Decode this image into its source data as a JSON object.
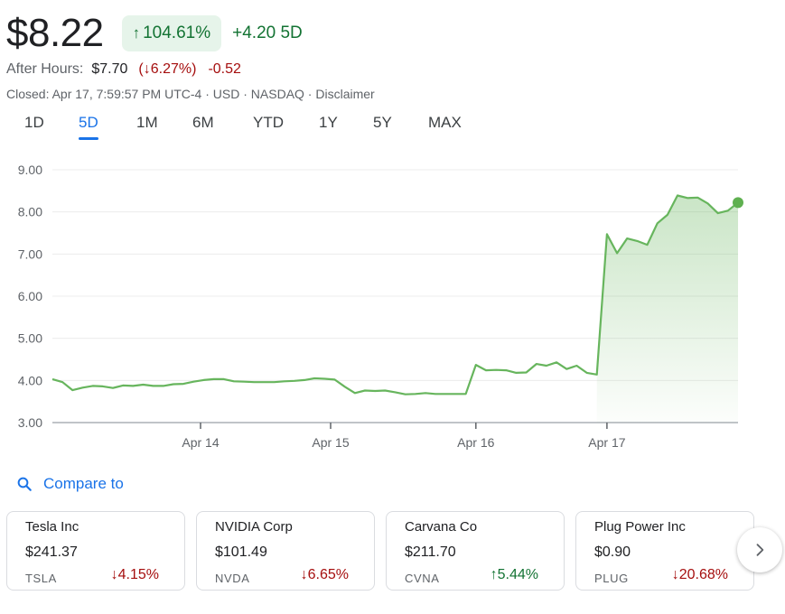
{
  "quote": {
    "price": "$8.22",
    "change_arrow_icon": "arrow-up-icon",
    "change_pct": "104.61%",
    "change_abs": "+4.20 5D",
    "after_hours_label": "After Hours:",
    "after_hours_price": "$7.70",
    "after_hours_pct_open": "(",
    "after_hours_pct": "6.27%",
    "after_hours_pct_close": ")",
    "after_hours_delta": "-0.52",
    "closed_text": "Closed: Apr 17, 7:59:57 PM UTC-4",
    "sep": " · ",
    "currency": "USD",
    "exchange": "NASDAQ",
    "disclaimer": "Disclaimer"
  },
  "tabs": [
    {
      "label": "1D",
      "active": false
    },
    {
      "label": "5D",
      "active": true
    },
    {
      "label": "1M",
      "active": false
    },
    {
      "label": "6M",
      "active": false
    },
    {
      "label": "YTD",
      "active": false
    },
    {
      "label": "1Y",
      "active": false
    },
    {
      "label": "5Y",
      "active": false
    },
    {
      "label": "MAX",
      "active": false
    }
  ],
  "colors": {
    "positive": "#137333",
    "negative": "#a50e0e",
    "accent": "#1a73e8",
    "line": "#67b55d"
  },
  "chart_data": {
    "type": "area",
    "title": "",
    "xlabel": "",
    "ylabel": "",
    "ylim": [
      3.0,
      9.0
    ],
    "y_ticks": [
      "9.00",
      "8.00",
      "7.00",
      "6.00",
      "5.00",
      "4.00",
      "3.00"
    ],
    "x_tick_labels": [
      "Apr 14",
      "Apr 15",
      "Apr 16",
      "Apr 17"
    ],
    "grid": true,
    "series": [
      {
        "values": [
          4.03,
          3.96,
          3.77,
          3.83,
          3.87,
          3.86,
          3.82,
          3.88,
          3.87,
          3.9,
          3.87,
          3.87,
          3.91,
          3.92,
          3.97,
          4.01,
          4.03,
          4.03,
          3.98,
          3.97,
          3.96,
          3.96,
          3.96,
          3.98,
          3.99,
          4.01,
          4.05,
          4.04,
          4.02,
          3.85,
          3.7,
          3.76,
          3.75,
          3.76,
          3.72,
          3.67,
          3.68,
          3.7,
          3.68,
          3.68,
          3.68,
          3.68,
          4.37,
          4.24,
          4.25,
          4.24,
          4.18,
          4.19,
          4.39,
          4.35,
          4.43,
          4.27,
          4.35,
          4.18,
          4.14,
          7.47,
          7.02,
          7.37,
          7.31,
          7.22,
          7.73,
          7.93,
          8.39,
          8.33,
          8.34,
          8.2,
          7.97,
          8.03,
          8.22
        ]
      }
    ]
  },
  "compare": {
    "icon": "search-icon",
    "label": "Compare to"
  },
  "cards": [
    {
      "name": "Tesla Inc",
      "price": "$241.37",
      "ticker": "TSLA",
      "direction": "down",
      "change": "4.15%"
    },
    {
      "name": "NVIDIA Corp",
      "price": "$101.49",
      "ticker": "NVDA",
      "direction": "down",
      "change": "6.65%"
    },
    {
      "name": "Carvana Co",
      "price": "$211.70",
      "ticker": "CVNA",
      "direction": "up",
      "change": "5.44%"
    },
    {
      "name": "Plug Power Inc",
      "price": "$0.90",
      "ticker": "PLUG",
      "direction": "down",
      "change": "20.68%"
    }
  ],
  "next_icon": "chevron-right-icon"
}
